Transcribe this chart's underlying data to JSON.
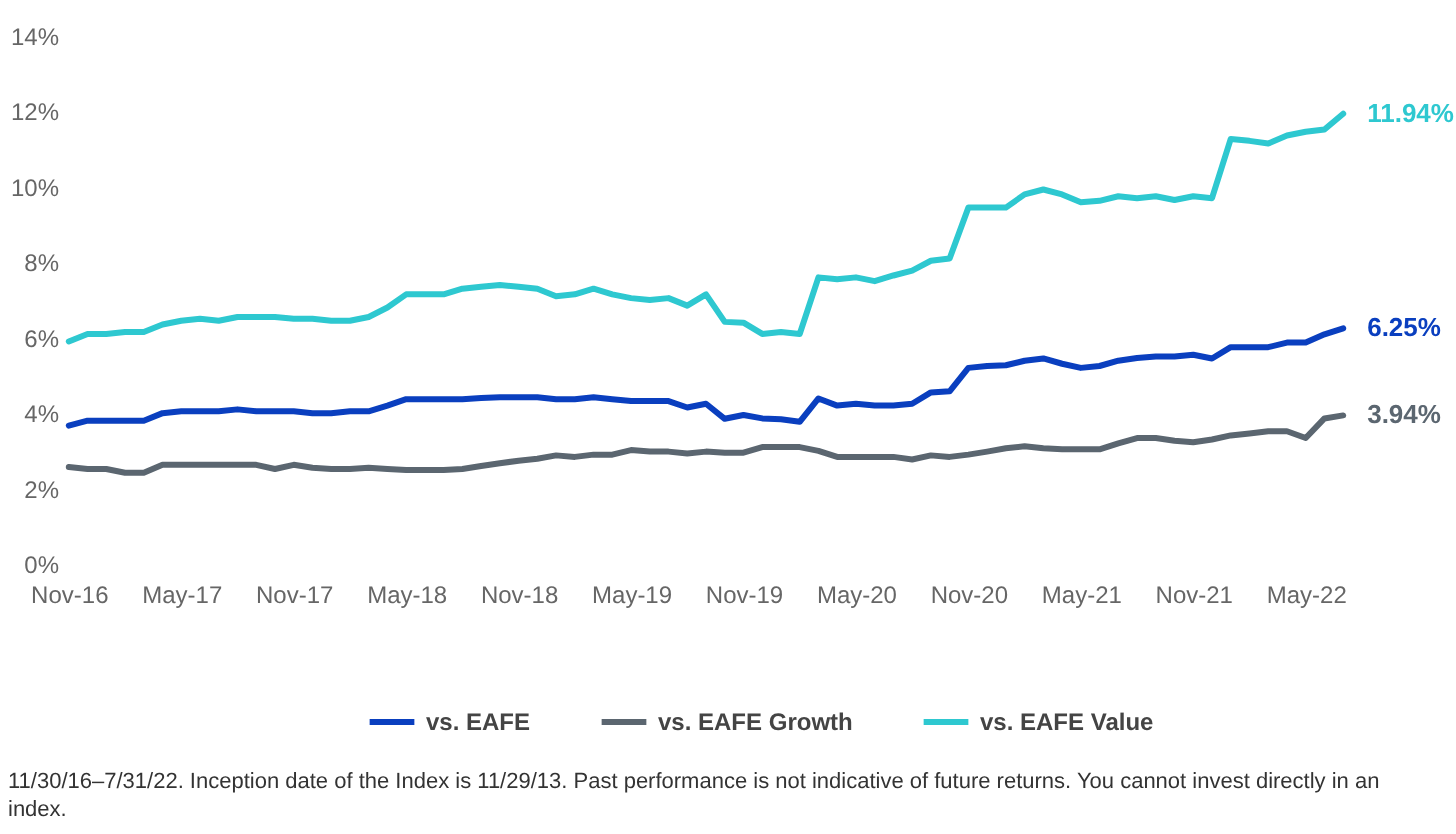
{
  "chart_data": {
    "type": "line",
    "categories": [
      "Nov-16",
      null,
      null,
      null,
      null,
      null,
      "May-17",
      null,
      null,
      null,
      null,
      null,
      "Nov-17",
      null,
      null,
      null,
      null,
      null,
      "May-18",
      null,
      null,
      null,
      null,
      null,
      "Nov-18",
      null,
      null,
      null,
      null,
      null,
      "May-19",
      null,
      null,
      null,
      null,
      null,
      "Nov-19",
      null,
      null,
      null,
      null,
      null,
      "May-20",
      null,
      null,
      null,
      null,
      null,
      "Nov-20",
      null,
      null,
      null,
      null,
      null,
      "May-21",
      null,
      null,
      null,
      null,
      null,
      "Nov-21",
      null,
      null,
      null,
      null,
      null,
      "May-22",
      null,
      null
    ],
    "series": [
      {
        "name": "vs. EAFE",
        "color": "#0a3fbf",
        "values": [
          3.67,
          3.8,
          3.8,
          3.8,
          3.8,
          4.0,
          4.05,
          4.05,
          4.05,
          4.1,
          4.05,
          4.05,
          4.05,
          4.0,
          4.0,
          4.05,
          4.05,
          4.2,
          4.37,
          4.37,
          4.37,
          4.37,
          4.4,
          4.42,
          4.42,
          4.42,
          4.37,
          4.37,
          4.42,
          4.37,
          4.32,
          4.32,
          4.32,
          4.15,
          4.25,
          3.85,
          3.95,
          3.86,
          3.84,
          3.77,
          4.39,
          4.2,
          4.25,
          4.2,
          4.2,
          4.25,
          4.55,
          4.58,
          5.2,
          5.25,
          5.27,
          5.39,
          5.45,
          5.31,
          5.2,
          5.25,
          5.39,
          5.46,
          5.5,
          5.5,
          5.55,
          5.45,
          5.75,
          5.75,
          5.75,
          5.87,
          5.87,
          6.09,
          6.25
        ],
        "value_labels": [
          null,
          null,
          null,
          null,
          null,
          null,
          null,
          null,
          null,
          null,
          null,
          null,
          null,
          null,
          null,
          null,
          null,
          null,
          null,
          null,
          null,
          null,
          null,
          null,
          null,
          null,
          null,
          null,
          null,
          null,
          null,
          null,
          null,
          null,
          null,
          null,
          null,
          null,
          null,
          null,
          null,
          null,
          null,
          null,
          null,
          null,
          null,
          null,
          null,
          null,
          null,
          null,
          null,
          null,
          null,
          null,
          null,
          null,
          null,
          null,
          null,
          null,
          null,
          null,
          null,
          null,
          null,
          null,
          "6.25%"
        ]
      },
      {
        "name": "vs. EAFE Growth",
        "color": "#5b6670",
        "values": [
          2.57,
          2.52,
          2.52,
          2.42,
          2.42,
          2.63,
          2.63,
          2.63,
          2.63,
          2.63,
          2.63,
          2.52,
          2.63,
          2.55,
          2.52,
          2.52,
          2.55,
          2.52,
          2.49,
          2.49,
          2.49,
          2.52,
          2.6,
          2.67,
          2.74,
          2.79,
          2.88,
          2.84,
          2.9,
          2.9,
          3.02,
          2.98,
          2.98,
          2.93,
          2.98,
          2.95,
          2.95,
          3.1,
          3.1,
          3.1,
          3.0,
          2.84,
          2.84,
          2.84,
          2.84,
          2.77,
          2.88,
          2.84,
          2.9,
          2.98,
          3.07,
          3.12,
          3.07,
          3.04,
          3.04,
          3.04,
          3.2,
          3.34,
          3.34,
          3.27,
          3.23,
          3.3,
          3.41,
          3.46,
          3.52,
          3.52,
          3.34,
          3.86,
          3.94
        ],
        "value_labels": [
          null,
          null,
          null,
          null,
          null,
          null,
          null,
          null,
          null,
          null,
          null,
          null,
          null,
          null,
          null,
          null,
          null,
          null,
          null,
          null,
          null,
          null,
          null,
          null,
          null,
          null,
          null,
          null,
          null,
          null,
          null,
          null,
          null,
          null,
          null,
          null,
          null,
          null,
          null,
          null,
          null,
          null,
          null,
          null,
          null,
          null,
          null,
          null,
          null,
          null,
          null,
          null,
          null,
          null,
          null,
          null,
          null,
          null,
          null,
          null,
          null,
          null,
          null,
          null,
          null,
          null,
          null,
          null,
          "3.94%"
        ]
      },
      {
        "name": "vs. EAFE Value",
        "color": "#2ec8d0",
        "values": [
          5.9,
          6.1,
          6.1,
          6.15,
          6.15,
          6.35,
          6.45,
          6.5,
          6.45,
          6.55,
          6.55,
          6.55,
          6.5,
          6.5,
          6.45,
          6.45,
          6.55,
          6.8,
          7.15,
          7.15,
          7.15,
          7.3,
          7.35,
          7.4,
          7.35,
          7.3,
          7.1,
          7.15,
          7.3,
          7.15,
          7.05,
          7.0,
          7.05,
          6.85,
          7.15,
          6.42,
          6.4,
          6.1,
          6.15,
          6.1,
          7.6,
          7.55,
          7.6,
          7.5,
          7.65,
          7.78,
          8.04,
          8.1,
          9.45,
          9.45,
          9.45,
          9.8,
          9.93,
          9.8,
          9.59,
          9.63,
          9.75,
          9.7,
          9.75,
          9.65,
          9.75,
          9.7,
          11.27,
          11.22,
          11.15,
          11.36,
          11.46,
          11.52,
          11.94
        ],
        "value_labels": [
          null,
          null,
          null,
          null,
          null,
          null,
          null,
          null,
          null,
          null,
          null,
          null,
          null,
          null,
          null,
          null,
          null,
          null,
          null,
          null,
          null,
          null,
          null,
          null,
          null,
          null,
          null,
          null,
          null,
          null,
          null,
          null,
          null,
          null,
          null,
          null,
          null,
          null,
          null,
          null,
          null,
          null,
          null,
          null,
          null,
          null,
          null,
          null,
          null,
          null,
          null,
          null,
          null,
          null,
          null,
          null,
          null,
          null,
          null,
          null,
          null,
          null,
          null,
          null,
          null,
          null,
          null,
          null,
          "11.94%"
        ]
      }
    ],
    "ylim": [
      0,
      14
    ],
    "yticks": [
      {
        "value": 0,
        "label": "0%"
      },
      {
        "value": 2,
        "label": "2%"
      },
      {
        "value": 4,
        "label": "4%"
      },
      {
        "value": 6,
        "label": "6%"
      },
      {
        "value": 8,
        "label": "8%"
      },
      {
        "value": 10,
        "label": "10%"
      },
      {
        "value": 12,
        "label": "12%"
      },
      {
        "value": 14,
        "label": "14%"
      }
    ],
    "legend": "bottom",
    "line_style": "solid",
    "annotations": [
      "11/30/16–7/31/22. Inception date of the Index is 11/29/13. Past performance is not indicative of future returns. You cannot invest directly in an index."
    ]
  }
}
